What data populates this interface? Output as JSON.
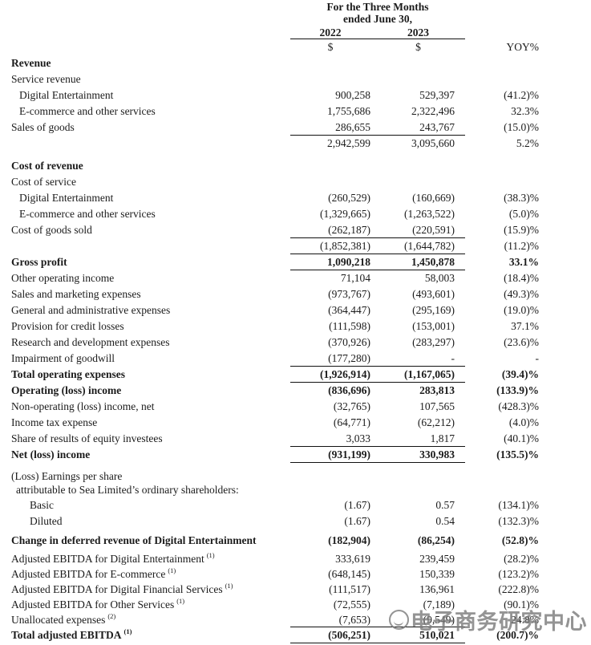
{
  "header": {
    "title_line1": "For the Three Months",
    "title_line2": "ended June 30,",
    "year_2022": "2022",
    "year_2023": "2023",
    "unit_2022": "$",
    "unit_2023": "$",
    "yoy_label": "YOY%"
  },
  "watermark": {
    "text": "电子商务研究中心",
    "color": "#7d7d7d"
  },
  "rows": [
    {
      "label": "Revenue",
      "bold": true,
      "gap": 2
    },
    {
      "label": "Service revenue"
    },
    {
      "label": "Digital Entertainment",
      "indent": 1,
      "v1": "900,258",
      "v2": "529,397",
      "yoy": "(41.2)%"
    },
    {
      "label": "E-commerce and other services",
      "indent": 1,
      "v1": "1,755,686",
      "v2": "2,322,496",
      "yoy": "32.3%"
    },
    {
      "label": "Sales of goods",
      "v1": "286,655",
      "v2": "243,767",
      "yoy": "(15.0)%",
      "rule": "below"
    },
    {
      "label": "",
      "v1": "2,942,599",
      "v2": "3,095,660",
      "yoy": "5.2%"
    },
    {
      "label": "Cost of revenue",
      "bold": true,
      "gap": 8
    },
    {
      "label": "Cost of service"
    },
    {
      "label": "Digital Entertainment",
      "indent": 1,
      "v1": "(260,529)",
      "v2": "(160,669)",
      "yoy": "(38.3)%"
    },
    {
      "label": "E-commerce and other services",
      "indent": 1,
      "v1": "(1,329,665)",
      "v2": "(1,263,522)",
      "yoy": "(5.0)%"
    },
    {
      "label": "Cost of goods sold",
      "v1": "(262,187)",
      "v2": "(220,591)",
      "yoy": "(15.9)%",
      "rule": "below"
    },
    {
      "label": "",
      "v1": "(1,852,381)",
      "v2": "(1,644,782)",
      "yoy": "(11.2)%",
      "rule": "below"
    },
    {
      "label": "Gross profit",
      "bold": true,
      "v1": "1,090,218",
      "v2": "1,450,878",
      "yoy": "33.1%",
      "rule": "below"
    },
    {
      "label": "Other operating income",
      "v1": "71,104",
      "v2": "58,003",
      "yoy": "(18.4)%"
    },
    {
      "label": "Sales and marketing expenses",
      "v1": "(973,767)",
      "v2": "(493,601)",
      "yoy": "(49.3)%"
    },
    {
      "label": "General and administrative expenses",
      "v1": "(364,447)",
      "v2": "(295,169)",
      "yoy": "(19.0)%"
    },
    {
      "label": "Provision for credit losses",
      "v1": "(111,598)",
      "v2": "(153,001)",
      "yoy": "37.1%"
    },
    {
      "label": "Research and development expenses",
      "v1": "(370,926)",
      "v2": "(283,297)",
      "yoy": "(23.6)%"
    },
    {
      "label": "Impairment of goodwill",
      "v1": "(177,280)",
      "v2": "-",
      "yoy": "-",
      "rule": "below"
    },
    {
      "label": "Total operating expenses",
      "bold": true,
      "v1": "(1,926,914)",
      "v2": "(1,167,065)",
      "yoy": "(39.4)%",
      "rule": "below"
    },
    {
      "label": "Operating (loss) income",
      "bold": true,
      "v1": "(836,696)",
      "v2": "283,813",
      "yoy": "(133.9)%"
    },
    {
      "label": "Non-operating (loss) income, net",
      "v1": "(32,765)",
      "v2": "107,565",
      "yoy": "(428.3)%"
    },
    {
      "label": "Income tax expense",
      "v1": "(64,771)",
      "v2": "(62,212)",
      "yoy": "(4.0)%"
    },
    {
      "label": "Share of results of equity investees",
      "v1": "3,033",
      "v2": "1,817",
      "yoy": "(40.1)%",
      "rule": "below"
    },
    {
      "label": "Net (loss) income",
      "bold": true,
      "v1": "(931,199)",
      "v2": "330,983",
      "yoy": "(135.5)%",
      "rule": "below"
    },
    {
      "label": "(Loss) Earnings per share",
      "gap": 9,
      "h": 16
    },
    {
      "label": "attributable to Sea Limited’s ordinary shareholders:",
      "indent": 2,
      "h": 18
    },
    {
      "label": "Basic",
      "indent": 3,
      "v1": "(1.67)",
      "v2": "0.57",
      "yoy": "(134.1)%"
    },
    {
      "label": "Diluted",
      "indent": 3,
      "v1": "(1.67)",
      "v2": "0.54",
      "yoy": "(132.3)%"
    },
    {
      "label": "Change in deferred revenue of Digital Entertainment",
      "bold": true,
      "gap": 4,
      "v1": "(182,904)",
      "v2": "(86,254)",
      "yoy": "(52.8)%"
    },
    {
      "label": "Adjusted EBITDA for Digital Entertainment",
      "sup": "(1)",
      "gap": 3,
      "h": 19,
      "v1": "333,619",
      "v2": "239,459",
      "yoy": "(28.2)%"
    },
    {
      "label": "Adjusted EBITDA for E-commerce",
      "sup": "(1)",
      "h": 19,
      "v1": "(648,145)",
      "v2": "150,339",
      "yoy": "(123.2)%"
    },
    {
      "label": "Adjusted EBITDA for Digital Financial Services",
      "sup": "(1)",
      "h": 19,
      "v1": "(111,517)",
      "v2": "136,961",
      "yoy": "(222.8)%"
    },
    {
      "label": "Adjusted EBITDA for Other Services",
      "sup": "(1)",
      "h": 19,
      "v1": "(72,555)",
      "v2": "(7,189)",
      "yoy": "(90.1)%"
    },
    {
      "label": "Unallocated expenses",
      "sup": "(2)",
      "h": 19,
      "v1": "(7,653)",
      "v2": "(9,549)",
      "yoy": "24.8%",
      "rule": "below"
    },
    {
      "label": "Total adjusted EBITDA",
      "sup": "(1)",
      "bold": true,
      "h": 19,
      "v1": "(506,251)",
      "v2": "510,021",
      "yoy": "(200.7)%",
      "rule": "double"
    }
  ]
}
